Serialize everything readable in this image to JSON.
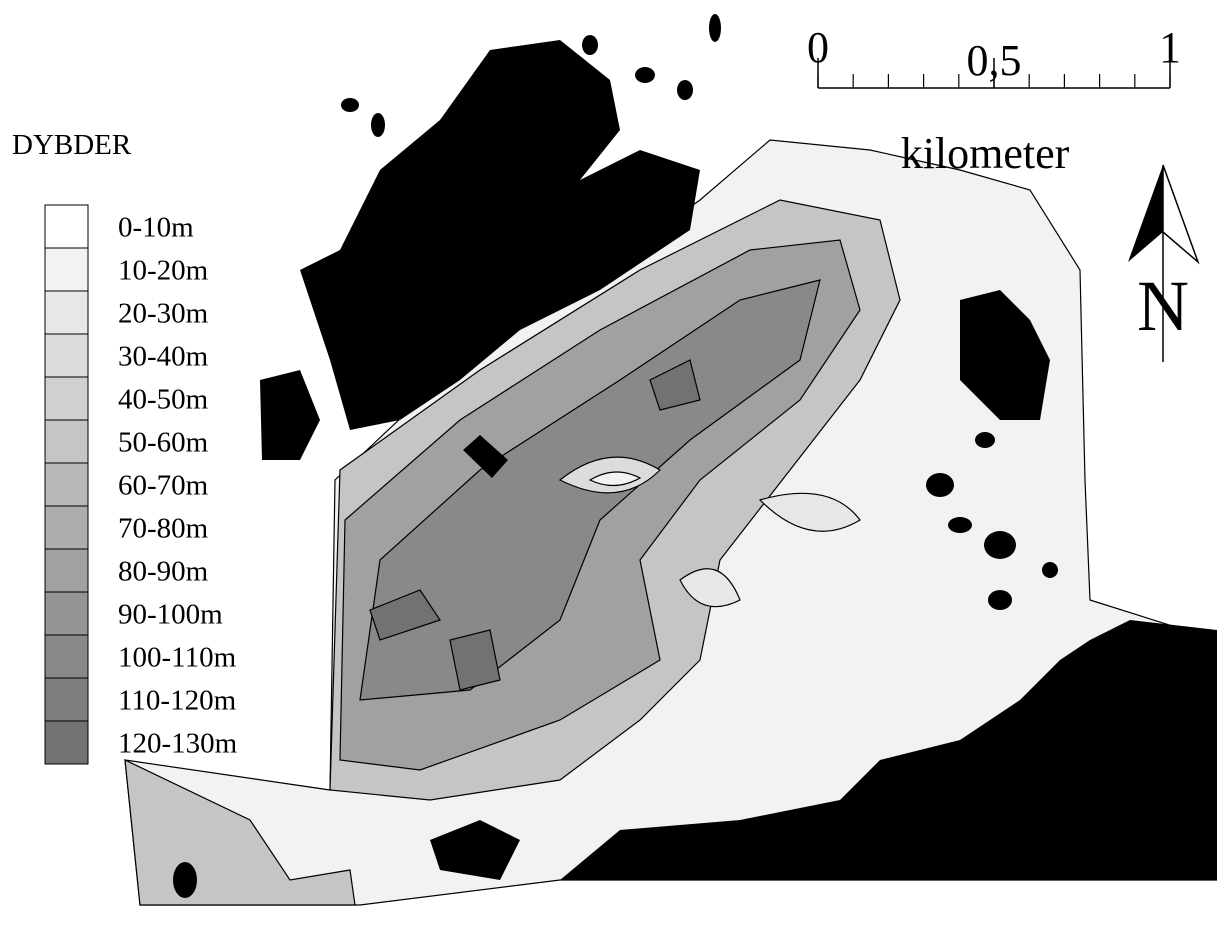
{
  "legend": {
    "title": "DYBDER",
    "items": [
      {
        "label": "0-10m",
        "color": "#ffffff"
      },
      {
        "label": "10-20m",
        "color": "#f2f2f2"
      },
      {
        "label": "20-30m",
        "color": "#e7e7e7"
      },
      {
        "label": "30-40m",
        "color": "#dcdcdc"
      },
      {
        "label": "40-50m",
        "color": "#d0d0d0"
      },
      {
        "label": "50-60m",
        "color": "#c5c5c5"
      },
      {
        "label": "60-70m",
        "color": "#b9b9b9"
      },
      {
        "label": "70-80m",
        "color": "#adadad"
      },
      {
        "label": "80-90m",
        "color": "#a1a1a1"
      },
      {
        "label": "90-100m",
        "color": "#959595"
      },
      {
        "label": "100-110m",
        "color": "#898989"
      },
      {
        "label": "110-120m",
        "color": "#7e7e7e"
      },
      {
        "label": "120-130m",
        "color": "#727272"
      }
    ]
  },
  "scale": {
    "range": [
      0,
      1
    ],
    "ticks": [
      0,
      {
        "value": 0.5,
        "label": "0,5"
      },
      1
    ],
    "unit": "kilometer"
  },
  "north": "N"
}
